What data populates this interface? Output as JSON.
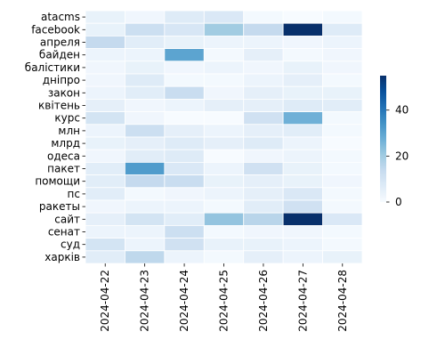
{
  "chart_data": {
    "type": "heatmap",
    "title": "",
    "xlabel": "",
    "ylabel": "",
    "x": [
      "2024-04-22",
      "2024-04-23",
      "2024-04-24",
      "2024-04-25",
      "2024-04-26",
      "2024-04-27",
      "2024-04-28"
    ],
    "y": [
      "atacms",
      "facebook",
      "апреля",
      "байден",
      "балiстики",
      "днiпро",
      "закон",
      "квiтень",
      "курс",
      "млн",
      "млрд",
      "одеса",
      "пакет",
      "помощи",
      "пс",
      "ракеты",
      "сайт",
      "сенат",
      "суд",
      "харкiв"
    ],
    "values": [
      [
        4,
        2,
        7,
        8,
        1,
        0,
        1
      ],
      [
        4,
        12,
        9,
        20,
        14,
        55,
        7
      ],
      [
        14,
        6,
        4,
        3,
        3,
        2,
        3
      ],
      [
        3,
        3,
        30,
        1,
        5,
        1,
        2
      ],
      [
        2,
        4,
        2,
        3,
        2,
        4,
        2
      ],
      [
        2,
        7,
        1,
        1,
        3,
        5,
        1
      ],
      [
        3,
        6,
        13,
        2,
        5,
        4,
        4
      ],
      [
        5,
        2,
        3,
        5,
        5,
        7,
        6
      ],
      [
        10,
        2,
        0,
        0,
        11,
        27,
        1
      ],
      [
        3,
        12,
        5,
        3,
        5,
        6,
        1
      ],
      [
        4,
        5,
        7,
        5,
        7,
        3,
        0
      ],
      [
        2,
        6,
        7,
        0,
        2,
        3,
        1
      ],
      [
        6,
        32,
        8,
        3,
        11,
        4,
        1
      ],
      [
        6,
        14,
        13,
        4,
        5,
        4,
        2
      ],
      [
        6,
        1,
        2,
        3,
        5,
        8,
        1
      ],
      [
        2,
        3,
        3,
        1,
        6,
        11,
        1
      ],
      [
        5,
        10,
        6,
        22,
        16,
        55,
        8
      ],
      [
        3,
        3,
        12,
        1,
        2,
        2,
        1
      ],
      [
        10,
        3,
        11,
        4,
        4,
        3,
        1
      ],
      [
        6,
        15,
        3,
        1,
        5,
        3,
        4
      ]
    ],
    "colorbar": {
      "min": 0,
      "max": 55,
      "ticks": [
        0,
        20,
        40
      ]
    },
    "colormap": [
      "#f7fbff",
      "#deebf7",
      "#c6dbef",
      "#9ecae1",
      "#6baed6",
      "#4292c6",
      "#2171b5",
      "#08519c",
      "#08306b"
    ],
    "grid": false,
    "legend": "colorbar-right"
  }
}
